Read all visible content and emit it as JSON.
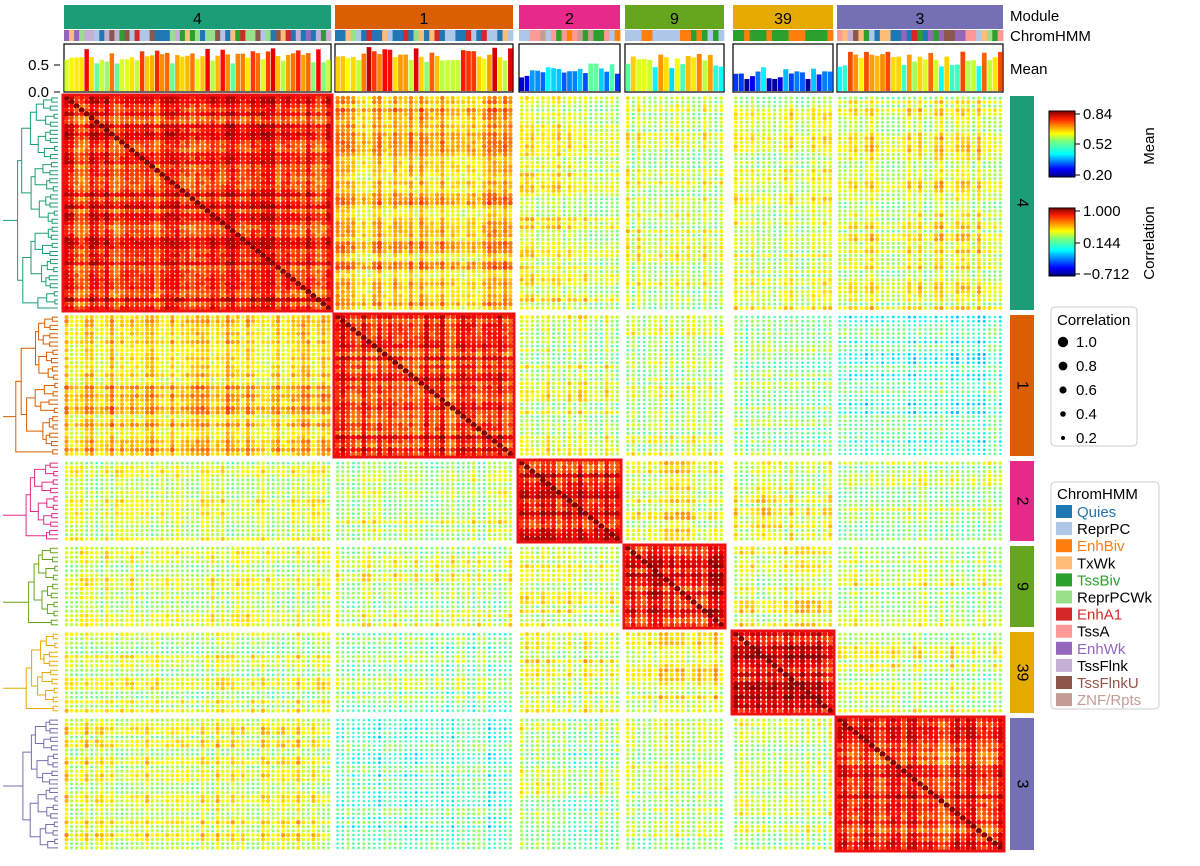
{
  "chart_data": {
    "type": "heatmap",
    "row_labels": {
      "module": "Module",
      "chromhmm": "ChromHMM",
      "mean": "Mean"
    },
    "mean_axis": {
      "ticks": [
        0.0,
        0.5
      ],
      "tick_labels": [
        "0.0",
        "0.5"
      ],
      "range": [
        0.0,
        0.84
      ]
    },
    "modules": [
      {
        "id": "4",
        "color": "#1b9e77",
        "size": 53,
        "mean_level": 0.64
      },
      {
        "id": "1",
        "color": "#d95f02",
        "size": 34,
        "mean_level": 0.67
      },
      {
        "id": "2",
        "color": "#e7298a",
        "size": 19,
        "mean_level": 0.38
      },
      {
        "id": "9",
        "color": "#66a61e",
        "size": 18,
        "mean_level": 0.55
      },
      {
        "id": "39",
        "color": "#e6ab02",
        "size": 18,
        "mean_level": 0.32
      },
      {
        "id": "3",
        "color": "#7570b3",
        "size": 31,
        "mean_level": 0.58
      }
    ],
    "within_module_correlation": [
      0.75,
      0.73,
      0.78,
      0.8,
      0.83,
      0.72
    ],
    "between_module_correlation": [
      [
        0.75,
        0.45,
        0.28,
        0.25,
        0.25,
        0.3
      ],
      [
        0.45,
        0.73,
        0.25,
        0.22,
        0.15,
        0.05
      ],
      [
        0.28,
        0.25,
        0.78,
        0.3,
        0.28,
        0.18
      ],
      [
        0.25,
        0.22,
        0.3,
        0.8,
        0.32,
        0.2
      ],
      [
        0.25,
        0.15,
        0.28,
        0.32,
        0.83,
        0.22
      ],
      [
        0.3,
        0.05,
        0.18,
        0.2,
        0.22,
        0.72
      ]
    ],
    "colorbar_mean": {
      "title": "Mean",
      "labels": [
        "0.84",
        "0.52",
        "0.20"
      ],
      "range": [
        0.2,
        0.84
      ]
    },
    "colorbar_corr": {
      "title": "Correlation",
      "labels": [
        "1.000",
        "0.144",
        "−0.712"
      ],
      "range": [
        -0.712,
        1.0
      ]
    },
    "size_legend": {
      "title": "Correlation",
      "values": [
        "1.0",
        "0.8",
        "0.6",
        "0.4",
        "0.2"
      ]
    },
    "chromhmm_legend": {
      "title": "ChromHMM",
      "states": [
        {
          "name": "Quies",
          "color": "#1f77b4",
          "text_color": "#1f77b4"
        },
        {
          "name": "ReprPC",
          "color": "#aec7e8",
          "text_color": "#000000"
        },
        {
          "name": "EnhBiv",
          "color": "#ff7f0e",
          "text_color": "#ff7f0e"
        },
        {
          "name": "TxWk",
          "color": "#ffbb78",
          "text_color": "#000000"
        },
        {
          "name": "TssBiv",
          "color": "#2ca02c",
          "text_color": "#2ca02c"
        },
        {
          "name": "ReprPCWk",
          "color": "#98df8a",
          "text_color": "#000000"
        },
        {
          "name": "EnhA1",
          "color": "#d62728",
          "text_color": "#d62728"
        },
        {
          "name": "TssA",
          "color": "#ff9896",
          "text_color": "#000000"
        },
        {
          "name": "EnhWk",
          "color": "#9467bd",
          "text_color": "#9467bd"
        },
        {
          "name": "TssFlnk",
          "color": "#c5b0d5",
          "text_color": "#000000"
        },
        {
          "name": "TssFlnkU",
          "color": "#8c564b",
          "text_color": "#8c564b"
        },
        {
          "name": "ZNF/Rpts",
          "color": "#c49c94",
          "text_color": "#c49c94"
        }
      ]
    }
  }
}
